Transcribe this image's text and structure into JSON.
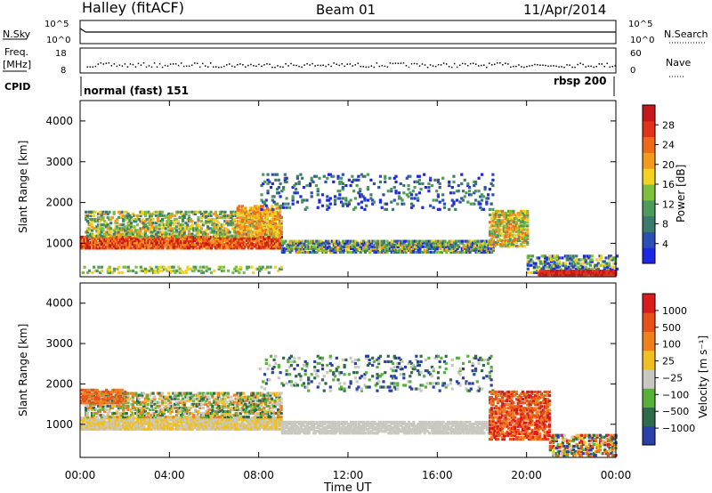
{
  "header": {
    "station": "Halley (fitACF)",
    "beam": "Beam 01",
    "date": "11/Apr/2014"
  },
  "strip": {
    "nsky_label": "N.Sky",
    "nsearch_label": "N.Search",
    "freq_label_1": "Freq.",
    "freq_label_2": "[MHz]",
    "nave_label": "Nave",
    "cpid_label": "CPID",
    "noise_ticks": [
      "10^5",
      "10^0"
    ],
    "freq_ticks": [
      "18",
      "8"
    ],
    "nave_ticks": [
      "60",
      "0"
    ],
    "cpid_left": "normal (fast) 151",
    "cpid_right": "rbsp 200"
  },
  "chart_data": [
    {
      "type": "heatmap",
      "ylabel": "Slant Range [km]",
      "yticks": [
        "1000",
        "2000",
        "3000",
        "4000"
      ],
      "ylim": [
        180,
        4500
      ],
      "xlim": [
        0,
        24
      ],
      "colorbar": {
        "label": "Power [dB]",
        "ticks": [
          "4",
          "8",
          "12",
          "16",
          "20",
          "24",
          "28"
        ],
        "colors": [
          "#1f27e6",
          "#2c4fb4",
          "#3d7a6e",
          "#4e9a5a",
          "#7fbf3f",
          "#f2d21d",
          "#f29a1c",
          "#ef6a18",
          "#e1331b",
          "#c4161b"
        ]
      }
    },
    {
      "type": "heatmap",
      "ylabel": "Slant Range [km]",
      "yticks": [
        "1000",
        "2000",
        "3000",
        "4000"
      ],
      "ylim": [
        180,
        4500
      ],
      "xlim": [
        0,
        24
      ],
      "xticks": [
        "00:00",
        "04:00",
        "08:00",
        "12:00",
        "16:00",
        "20:00",
        "00:00"
      ],
      "xlabel": "Time UT",
      "colorbar": {
        "label": "Velocity [m s⁻¹]",
        "ticks": [
          "1000",
          "500",
          "100",
          "25",
          "−25",
          "−100",
          "−500",
          "−1000"
        ],
        "colors": [
          "#2b3fa8",
          "#2f6b4a",
          "#57b03a",
          "#c8c8c0",
          "#f0c020",
          "#f0801c",
          "#e8501a",
          "#d81c1c"
        ]
      }
    }
  ]
}
